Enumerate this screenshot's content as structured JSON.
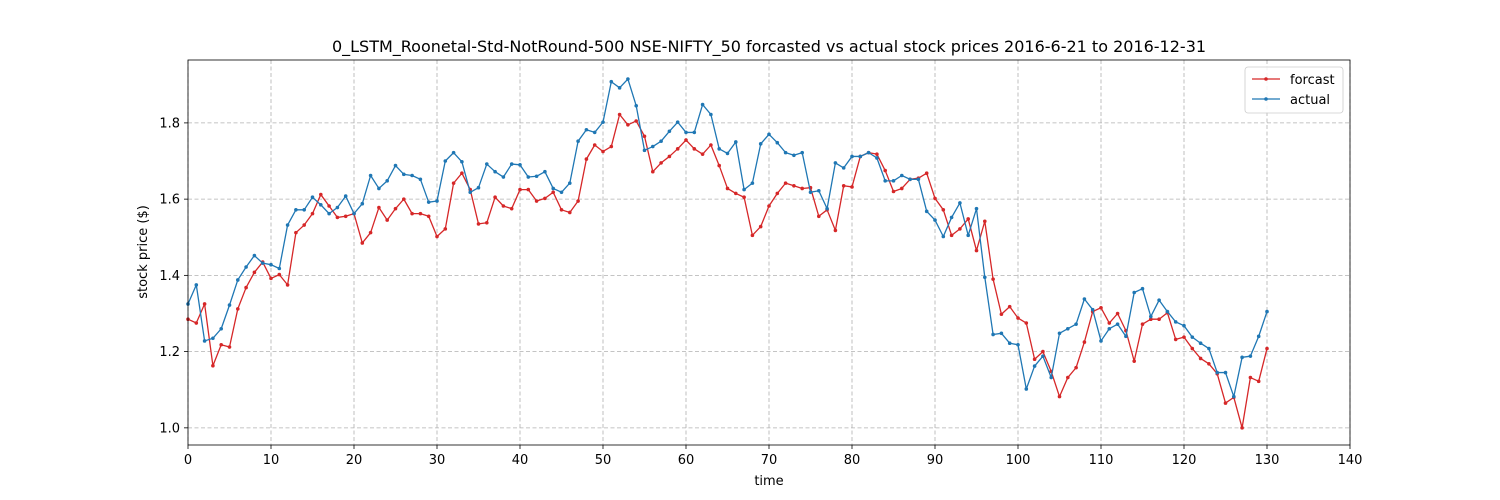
{
  "chart_data": {
    "type": "line",
    "title": "0_LSTM_Roonetal-Std-NotRound-500 NSE-NIFTY_50 forcasted vs actual stock prices 2016-6-21 to 2016-12-31",
    "xlabel": "time",
    "ylabel": "stock price ($)",
    "xlim": [
      0,
      140
    ],
    "ylim": [
      0.955,
      1.965
    ],
    "xticks": [
      0,
      10,
      20,
      30,
      40,
      50,
      60,
      70,
      80,
      90,
      100,
      110,
      120,
      130,
      140
    ],
    "yticks": [
      1.0,
      1.2,
      1.4,
      1.6,
      1.8
    ],
    "grid": true,
    "legend_position": "top-right",
    "series": [
      {
        "name": "forcast",
        "color": "#d62728",
        "values": [
          1.285,
          1.275,
          1.325,
          1.163,
          1.218,
          1.212,
          1.312,
          1.368,
          1.408,
          1.435,
          1.392,
          1.402,
          1.375,
          1.512,
          1.532,
          1.562,
          1.612,
          1.582,
          1.552,
          1.555,
          1.562,
          1.485,
          1.512,
          1.578,
          1.545,
          1.575,
          1.6,
          1.562,
          1.562,
          1.555,
          1.502,
          1.522,
          1.642,
          1.668,
          1.625,
          1.535,
          1.538,
          1.605,
          1.582,
          1.575,
          1.625,
          1.625,
          1.595,
          1.602,
          1.618,
          1.572,
          1.565,
          1.595,
          1.705,
          1.742,
          1.725,
          1.738,
          1.822,
          1.795,
          1.805,
          1.765,
          1.672,
          1.695,
          1.712,
          1.732,
          1.755,
          1.732,
          1.718,
          1.742,
          1.688,
          1.628,
          1.615,
          1.605,
          1.505,
          1.528,
          1.582,
          1.615,
          1.642,
          1.635,
          1.628,
          1.63,
          1.555,
          1.572,
          1.518,
          1.635,
          1.632,
          1.712,
          1.722,
          1.718,
          1.675,
          1.62,
          1.628,
          1.652,
          1.655,
          1.668,
          1.602,
          1.572,
          1.505,
          1.522,
          1.548,
          1.465,
          1.542,
          1.39,
          1.298,
          1.318,
          1.288,
          1.275,
          1.18,
          1.2,
          1.148,
          1.082,
          1.132,
          1.158,
          1.225,
          1.305,
          1.315,
          1.275,
          1.3,
          1.255,
          1.175,
          1.272,
          1.285,
          1.285,
          1.302,
          1.232,
          1.238,
          1.208,
          1.182,
          1.168,
          1.142,
          1.065,
          1.08,
          1.0,
          1.132,
          1.122,
          1.208
        ]
      },
      {
        "name": "actual",
        "color": "#1f77b4",
        "values": [
          1.325,
          1.375,
          1.228,
          1.235,
          1.26,
          1.322,
          1.388,
          1.422,
          1.452,
          1.432,
          1.428,
          1.418,
          1.532,
          1.572,
          1.572,
          1.605,
          1.585,
          1.562,
          1.578,
          1.608,
          1.562,
          1.588,
          1.662,
          1.628,
          1.648,
          1.688,
          1.665,
          1.662,
          1.652,
          1.592,
          1.595,
          1.7,
          1.722,
          1.698,
          1.618,
          1.63,
          1.692,
          1.672,
          1.658,
          1.692,
          1.69,
          1.658,
          1.66,
          1.672,
          1.628,
          1.618,
          1.642,
          1.752,
          1.782,
          1.775,
          1.802,
          1.908,
          1.892,
          1.915,
          1.845,
          1.728,
          1.738,
          1.752,
          1.778,
          1.802,
          1.775,
          1.775,
          1.848,
          1.822,
          1.732,
          1.72,
          1.75,
          1.625,
          1.642,
          1.745,
          1.77,
          1.748,
          1.722,
          1.715,
          1.722,
          1.618,
          1.622,
          1.575,
          1.695,
          1.682,
          1.712,
          1.712,
          1.722,
          1.708,
          1.648,
          1.648,
          1.662,
          1.652,
          1.652,
          1.568,
          1.545,
          1.502,
          1.552,
          1.59,
          1.505,
          1.575,
          1.395,
          1.245,
          1.248,
          1.222,
          1.218,
          1.102,
          1.162,
          1.188,
          1.132,
          1.248,
          1.26,
          1.272,
          1.338,
          1.31,
          1.228,
          1.26,
          1.272,
          1.24,
          1.355,
          1.365,
          1.292,
          1.335,
          1.305,
          1.278,
          1.268,
          1.238,
          1.222,
          1.208,
          1.145,
          1.145,
          1.082,
          1.185,
          1.188,
          1.24,
          1.305
        ]
      }
    ]
  }
}
